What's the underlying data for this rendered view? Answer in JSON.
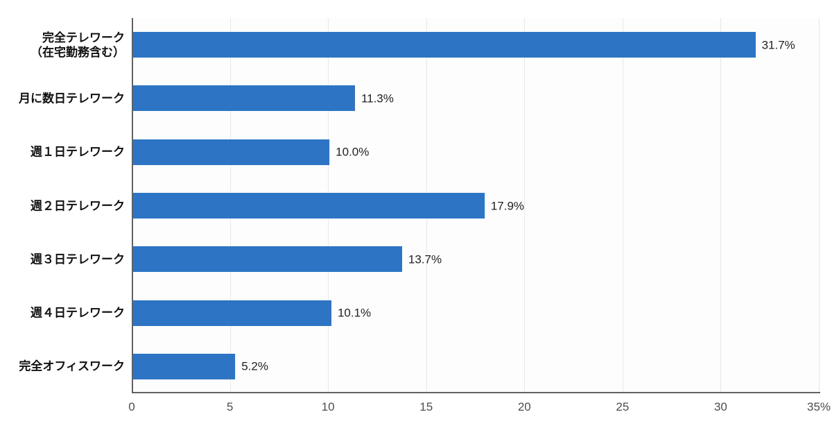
{
  "chart_data": {
    "type": "bar",
    "orientation": "horizontal",
    "title": "",
    "xlabel": "",
    "ylabel": "",
    "categories": [
      [
        "完全テレワーク",
        "（在宅勤務含む）"
      ],
      [
        "月に数日テレワーク"
      ],
      [
        "週１日テレワーク"
      ],
      [
        "週２日テレワーク"
      ],
      [
        "週３日テレワーク"
      ],
      [
        "週４日テレワーク"
      ],
      [
        "完全オフィスワーク"
      ]
    ],
    "values": [
      31.7,
      11.3,
      10.0,
      17.9,
      13.7,
      10.1,
      5.2
    ],
    "value_labels": [
      "31.7%",
      "11.3%",
      "10.0%",
      "17.9%",
      "13.7%",
      "10.1%",
      "5.2%"
    ],
    "xlim": [
      0,
      35
    ],
    "x_ticks": [
      {
        "value": 0,
        "label": "0"
      },
      {
        "value": 5,
        "label": "5"
      },
      {
        "value": 10,
        "label": "10"
      },
      {
        "value": 15,
        "label": "15"
      },
      {
        "value": 20,
        "label": "20"
      },
      {
        "value": 25,
        "label": "25"
      },
      {
        "value": 30,
        "label": "30"
      },
      {
        "value": 35,
        "label": "35%"
      }
    ],
    "grid": true,
    "legend": false,
    "colors": {
      "bar": "#2d74c4",
      "gridline": "#e8e8e8",
      "axis": "#616161",
      "tick_text": "#4d4d4d",
      "value_text": "#1f1f1f",
      "category_text": "#111111"
    }
  }
}
